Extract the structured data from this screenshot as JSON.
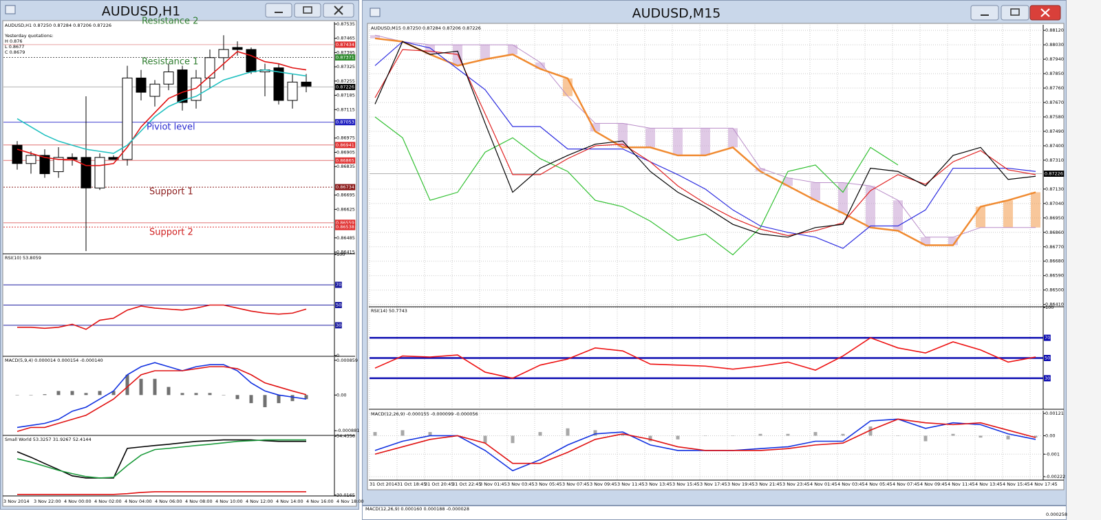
{
  "left": {
    "title": "AUDUSD,H1",
    "times": [
      "3 Nov 2014",
      "3 Nov 22:00",
      "4 Nov 00:00",
      "4 Nov 02:00",
      "4 Nov 04:00",
      "4 Nov 06:00",
      "4 Nov 08:00",
      "4 Nov 10:00",
      "4 Nov 12:00",
      "4 Nov 14:00",
      "4 Nov 16:00",
      "4 Nov 18:00"
    ],
    "main": {
      "header": "AUDUSD,H1  0.87250 0.87284 0.87206 0.87226",
      "quotes": [
        "Yesterday quotations:",
        "H 0.876",
        "L 0.8677",
        "C 0.8679"
      ],
      "ylim": [
        0.8641,
        0.87545
      ],
      "yticks": [
        0.87535,
        0.87465,
        0.87395,
        0.87325,
        0.87255,
        0.87185,
        0.87115,
        0.86975,
        0.86905,
        0.86835,
        0.86695,
        0.86625,
        0.86485,
        0.86415
      ],
      "levels": [
        {
          "value": 0.87434,
          "color": "#e03030",
          "line": "#e8a0a0",
          "style": "solid"
        },
        {
          "value": 0.87371,
          "color": "#2e8b2e",
          "line": "#555555",
          "style": "dotted"
        },
        {
          "value": 0.87226,
          "color": "#000000",
          "line": "#b0b0b0",
          "style": "solid"
        },
        {
          "value": 0.87053,
          "color": "#2020c0",
          "line": "#4040d0",
          "style": "solid"
        },
        {
          "value": 0.86941,
          "color": "#e03030",
          "line": "#e07070",
          "style": "solid"
        },
        {
          "value": 0.86865,
          "color": "#e03030",
          "line": "#e07070",
          "style": "solid"
        },
        {
          "value": 0.86734,
          "color": "#8b1a1a",
          "line": "#8b1a1a",
          "style": "dotted"
        },
        {
          "value": 0.86559,
          "color": "#e03030",
          "line": "#e07070",
          "style": "solid"
        },
        {
          "value": 0.86538,
          "color": "#e03030",
          "line": "#e03030",
          "style": "dotted"
        }
      ],
      "annotations": [
        {
          "text": "Resistance 2",
          "color": "#2e7d2e"
        },
        {
          "text": "Resistance 1",
          "color": "#2e7d2e"
        },
        {
          "text": "Piviot level",
          "color": "#2a2ad0"
        },
        {
          "text": "Support 1",
          "color": "#8b1a1a"
        },
        {
          "text": "Support 2",
          "color": "#d02020"
        }
      ],
      "candles": {
        "open": [
          0.8694,
          0.8685,
          0.8689,
          0.8681,
          0.8688,
          0.8688,
          0.8673,
          0.8688,
          0.8687,
          0.8727,
          0.8718,
          0.8724,
          0.8731,
          0.8716,
          0.8727,
          0.8737,
          0.8742,
          0.8741,
          0.873,
          0.8732,
          0.8716,
          0.8725
        ],
        "high": [
          0.8696,
          0.8691,
          0.8692,
          0.8693,
          0.869,
          0.8718,
          0.869,
          0.8689,
          0.8733,
          0.8731,
          0.8726,
          0.8734,
          0.8733,
          0.8731,
          0.8741,
          0.8748,
          0.8745,
          0.8742,
          0.8734,
          0.8734,
          0.8729,
          0.8729
        ],
        "low": [
          0.8682,
          0.868,
          0.8678,
          0.8678,
          0.8684,
          0.8642,
          0.8672,
          0.8687,
          0.8684,
          0.8716,
          0.8713,
          0.8721,
          0.8711,
          0.8712,
          0.8722,
          0.8731,
          0.8738,
          0.8729,
          0.8718,
          0.8714,
          0.8712,
          0.872
        ],
        "close": [
          0.8685,
          0.8689,
          0.868,
          0.8688,
          0.8687,
          0.8673,
          0.8688,
          0.8687,
          0.8727,
          0.872,
          0.8724,
          0.873,
          0.8715,
          0.8727,
          0.8737,
          0.8741,
          0.8741,
          0.873,
          0.8731,
          0.8716,
          0.8725,
          0.8723
        ]
      },
      "series": [
        {
          "color": "#e01010",
          "values": [
            0.8692,
            0.869,
            0.8688,
            0.8687,
            0.8687,
            0.8684,
            0.8684,
            0.8685,
            0.8693,
            0.8703,
            0.871,
            0.8717,
            0.872,
            0.8722,
            0.8728,
            0.8734,
            0.874,
            0.8738,
            0.8735,
            0.8734,
            0.8732,
            0.8731
          ]
        },
        {
          "color": "#20c0c0",
          "values": [
            0.8707,
            0.8703,
            0.8699,
            0.8696,
            0.8694,
            0.8692,
            0.8691,
            0.869,
            0.8694,
            0.8701,
            0.8708,
            0.8713,
            0.8716,
            0.8718,
            0.8722,
            0.8726,
            0.8728,
            0.873,
            0.8731,
            0.873,
            0.8729,
            0.8728
          ]
        }
      ]
    },
    "rsi": {
      "header": "RSI(10) 53.8059",
      "ylim": [
        0,
        100
      ],
      "yticks": [
        100,
        0
      ],
      "levels": [
        {
          "value": 70,
          "color": "#1a1aa0",
          "line": "#1a1aa0",
          "style": "solid"
        },
        {
          "value": 50,
          "color": "#1a1aa0",
          "line": "#1a1aa0",
          "style": "solid"
        },
        {
          "value": 30,
          "color": "#1a1aa0",
          "line": "#1a1aa0",
          "style": "solid"
        }
      ],
      "series": [
        {
          "color": "#e01010",
          "values": [
            28,
            28,
            27,
            28,
            31,
            26,
            35,
            37,
            45,
            49,
            47,
            46,
            45,
            47,
            50,
            50,
            47,
            44,
            42,
            41,
            42,
            46
          ]
        }
      ]
    },
    "macd": {
      "header": "MACD(5,9,4) 0.000014 0.000154 -0.000140",
      "ylim": [
        -0.00098,
        0.00094
      ],
      "yticks": [
        0.000859,
        {
          "value": 0,
          "label": "0.00"
        },
        -0.000881
      ],
      "histogram": {
        "color": "#707070",
        "values": [
          0,
          0,
          2e-05,
          0.0001,
          0.0001,
          5e-05,
          0.0001,
          0.0001,
          0.0005,
          0.0004,
          0.0004,
          0.0002,
          5e-05,
          5e-05,
          5e-05,
          0,
          -0.0001,
          -0.0002,
          -0.0003,
          -0.0002,
          -0.00015,
          -0.0001
        ]
      },
      "series": [
        {
          "color": "#1030e0",
          "values": [
            -0.0008,
            -0.00075,
            -0.0007,
            -0.0006,
            -0.0004,
            -0.0003,
            -0.0001,
            0.0001,
            0.0005,
            0.0007,
            0.0008,
            0.0007,
            0.0006,
            0.0007,
            0.00075,
            0.00075,
            0.0006,
            0.0003,
            0.0001,
            0,
            -5e-05,
            -0.0001
          ]
        },
        {
          "color": "#e01010",
          "values": [
            -0.0009,
            -0.0008,
            -0.0008,
            -0.0007,
            -0.0006,
            -0.0005,
            -0.0003,
            -0.0001,
            0.0002,
            0.0005,
            0.0006,
            0.0006,
            0.0006,
            0.00065,
            0.0007,
            0.0007,
            0.00065,
            0.0005,
            0.0003,
            0.0002,
            0.0001,
            1e-05
          ]
        }
      ]
    },
    "sw": {
      "header": "Small World 53.3257 31.9267 52.4144",
      "ylim": [
        29.95,
        54.5
      ],
      "yticks": [
        54.4356,
        30.0165
      ],
      "series": [
        {
          "color": "#000000",
          "values": [
            48.0,
            45.7,
            43.1,
            40.6,
            38.0,
            37.1,
            37.1,
            37.1,
            49.4,
            50.0,
            50.6,
            51.1,
            51.7,
            52.3,
            52.6,
            52.9,
            52.9,
            52.9,
            52.6,
            52.3,
            52.3,
            52.3
          ]
        },
        {
          "color": "#1a9a3a",
          "values": [
            45.1,
            43.7,
            42.0,
            40.3,
            38.9,
            37.7,
            37.1,
            37.4,
            42.3,
            46.6,
            48.9,
            49.4,
            50.0,
            50.6,
            51.1,
            51.7,
            52.3,
            52.6,
            52.9,
            52.9,
            52.9,
            52.9
          ]
        },
        {
          "color": "#e01010",
          "values": [
            30.3,
            30.3,
            30.3,
            30.3,
            30.3,
            30.3,
            30.3,
            30.3,
            30.6,
            31.1,
            31.4,
            31.4,
            31.4,
            31.4,
            31.4,
            31.4,
            31.4,
            31.4,
            31.4,
            31.4,
            31.4,
            31.4
          ]
        }
      ]
    }
  },
  "right": {
    "title": "AUDUSD,M15",
    "grid": true,
    "times": [
      "31 Oct 2014",
      "31 Oct 18:45",
      "31 Oct 20:45",
      "31 Oct 22:45",
      "3 Nov 01:45",
      "3 Nov 03:45",
      "3 Nov 05:45",
      "3 Nov 07:45",
      "3 Nov 09:45",
      "3 Nov 11:45",
      "3 Nov 13:45",
      "3 Nov 15:45",
      "3 Nov 17:45",
      "3 Nov 19:45",
      "3 Nov 21:45",
      "3 Nov 23:45",
      "4 Nov 01:45",
      "4 Nov 03:45",
      "4 Nov 05:45",
      "4 Nov 07:45",
      "4 Nov 09:45",
      "4 Nov 11:45",
      "4 Nov 13:45",
      "4 Nov 15:45",
      "4 Nov 17:45"
    ],
    "main": {
      "header": "AUDUSD,M15  0.87250 0.87284 0.87206 0.87226",
      "ylim": [
        0.864,
        0.88155
      ],
      "yticks": [
        {
          "value": 0.8812,
          "label": "0.88120"
        },
        {
          "value": 0.8803,
          "label": "0.88030"
        },
        {
          "value": 0.8794,
          "label": "0.87940"
        },
        {
          "value": 0.8785,
          "label": "0.87850"
        },
        {
          "value": 0.8776,
          "label": "0.87760"
        },
        {
          "value": 0.8767,
          "label": "0.87670"
        },
        {
          "value": 0.8758,
          "label": "0.87580"
        },
        {
          "value": 0.8749,
          "label": "0.87490"
        },
        {
          "value": 0.874,
          "label": "0.87400"
        },
        {
          "value": 0.8731,
          "label": "0.87310"
        },
        {
          "value": 0.8713,
          "label": "0.87130"
        },
        {
          "value": 0.8704,
          "label": "0.87040"
        },
        {
          "value": 0.8695,
          "label": "0.86950"
        },
        {
          "value": 0.8686,
          "label": "0.86860"
        },
        {
          "value": 0.8677,
          "label": "0.86770"
        },
        {
          "value": 0.8668,
          "label": "0.86680"
        },
        {
          "value": 0.8659,
          "label": "0.86590"
        },
        {
          "value": 0.865,
          "label": "0.86500"
        },
        {
          "value": 0.8641,
          "label": "0.86410"
        }
      ],
      "levels": [
        {
          "value": 0.87226,
          "color": "#000000",
          "line": "#b0b0b0",
          "style": "solid"
        }
      ],
      "cloud": {
        "above_color": "#f39a4a",
        "below_color": "#c79fd2",
        "spanA": {
          "color": "#f08a30",
          "values": [
            0.8807,
            0.8805,
            0.8797,
            0.879,
            0.8794,
            0.8797,
            0.8788,
            0.8782,
            0.8749,
            0.8739,
            0.8739,
            0.8734,
            0.8734,
            0.8739,
            0.8724,
            0.8715,
            0.8706,
            0.8698,
            0.8689,
            0.8687,
            0.8678,
            0.8678,
            0.8702,
            0.8706,
            0.8711
          ]
        },
        "spanB": {
          "color": "#b98cc8",
          "values": [
            0.8809,
            0.8805,
            0.8803,
            0.8803,
            0.8803,
            0.8803,
            0.8792,
            0.8771,
            0.8754,
            0.8754,
            0.8751,
            0.8751,
            0.8751,
            0.8751,
            0.8726,
            0.872,
            0.8717,
            0.8717,
            0.8715,
            0.8706,
            0.8683,
            0.8683,
            0.8689,
            0.8689,
            0.8689
          ]
        }
      },
      "series": [
        {
          "color": "#30c030",
          "values": [
            0.8758,
            0.8745,
            0.8706,
            0.8711,
            0.8736,
            0.8745,
            0.8732,
            0.8724,
            0.8706,
            0.8702,
            0.8693,
            0.8681,
            0.8685,
            0.8672,
            0.8689,
            0.8724,
            0.8728,
            0.8711,
            0.8739,
            0.8728,
            null,
            null,
            null,
            null,
            null
          ]
        },
        {
          "color": "#2a2ae0",
          "values": [
            0.879,
            0.8805,
            0.8801,
            0.8788,
            0.8775,
            0.8752,
            0.8752,
            0.8738,
            0.8738,
            0.8738,
            0.873,
            0.8722,
            0.8713,
            0.87,
            0.869,
            0.8686,
            0.8683,
            0.8676,
            0.869,
            0.869,
            0.87,
            0.8726,
            0.8726,
            0.8726,
            0.8724
          ]
        },
        {
          "color": "#e02020",
          "values": [
            0.877,
            0.88,
            0.8799,
            0.8797,
            0.876,
            0.8722,
            0.8722,
            0.8732,
            0.874,
            0.8741,
            0.873,
            0.8715,
            0.8704,
            0.8695,
            0.8688,
            0.8684,
            0.8687,
            0.8692,
            0.8712,
            0.8722,
            0.8716,
            0.873,
            0.8737,
            0.8725,
            0.8722
          ]
        },
        {
          "color": "#000000",
          "values": [
            0.8766,
            0.8805,
            0.8797,
            0.8799,
            0.8754,
            0.8711,
            0.8726,
            0.8734,
            0.8741,
            0.8743,
            0.8724,
            0.8711,
            0.8702,
            0.8691,
            0.8685,
            0.8683,
            0.8689,
            0.8691,
            0.8726,
            0.8724,
            0.8715,
            0.8734,
            0.8739,
            0.8719,
            0.8721
          ]
        }
      ]
    },
    "rsi": {
      "header": "RSI(14) 50.7743",
      "ylim": [
        0,
        100
      ],
      "yticks": [
        100
      ],
      "levels": [
        {
          "value": 70,
          "color": "#0a0ab0",
          "line": "#0a0ab0",
          "style": "bold"
        },
        {
          "value": 50,
          "color": "#0a0ab0",
          "line": "#0a0ab0",
          "style": "bold"
        },
        {
          "value": 30,
          "color": "#0a0ab0",
          "line": "#0a0ab0",
          "style": "bold"
        }
      ],
      "series": [
        {
          "color": "#ee1010",
          "values": [
            40,
            52,
            51,
            53,
            36,
            30,
            43,
            49,
            60,
            57,
            44,
            43,
            42,
            39,
            42,
            46,
            38,
            52,
            70,
            60,
            55,
            66,
            58,
            46,
            51
          ]
        }
      ]
    },
    "macd": {
      "header": "MACD(12,26,9) -0.000155 -0.000099 -0.000056",
      "ylim": [
        -0.00237,
        0.00136
      ],
      "yticks": [
        0.00121,
        {
          "value": 0,
          "label": "0.00"
        },
        -0.001,
        -0.00222
      ],
      "histogram": {
        "color": "#a8a8a8",
        "values": [
          0.0002,
          0.0003,
          0.0002,
          0,
          -0.0004,
          -0.0004,
          0.0002,
          0.0004,
          0.0003,
          0.0001,
          -0.0003,
          -0.0002,
          0,
          0,
          0.0001,
          0.0001,
          0.0002,
          0.0001,
          0.0005,
          0,
          -0.0003,
          0.0001,
          -0.0001,
          -0.0002,
          -0.0001
        ]
      },
      "series": [
        {
          "color": "#1030e0",
          "values": [
            -0.0008,
            -0.0003,
            0,
            0,
            -0.0008,
            -0.0019,
            -0.0013,
            -0.0005,
            0.0001,
            0.0002,
            -0.0005,
            -0.0008,
            -0.0008,
            -0.0008,
            -0.0007,
            -0.0006,
            -0.0003,
            -0.0003,
            0.0008,
            0.0009,
            0.0004,
            0.0007,
            0.0006,
            0.0001,
            -0.0002
          ]
        },
        {
          "color": "#e01010",
          "values": [
            -0.001,
            -0.0006,
            -0.0002,
            0,
            -0.0004,
            -0.0015,
            -0.0015,
            -0.0009,
            -0.0002,
            0.0001,
            -0.0002,
            -0.0006,
            -0.0008,
            -0.0008,
            -0.0008,
            -0.0007,
            -0.0005,
            -0.0004,
            0.0003,
            0.0009,
            0.0007,
            0.0006,
            0.0007,
            0.0003,
            -0.0001
          ]
        }
      ]
    }
  },
  "bottom": {
    "header": "MACD(12,26,9) 0.000160 0.000188 -0.000028",
    "value": "0.000258"
  }
}
